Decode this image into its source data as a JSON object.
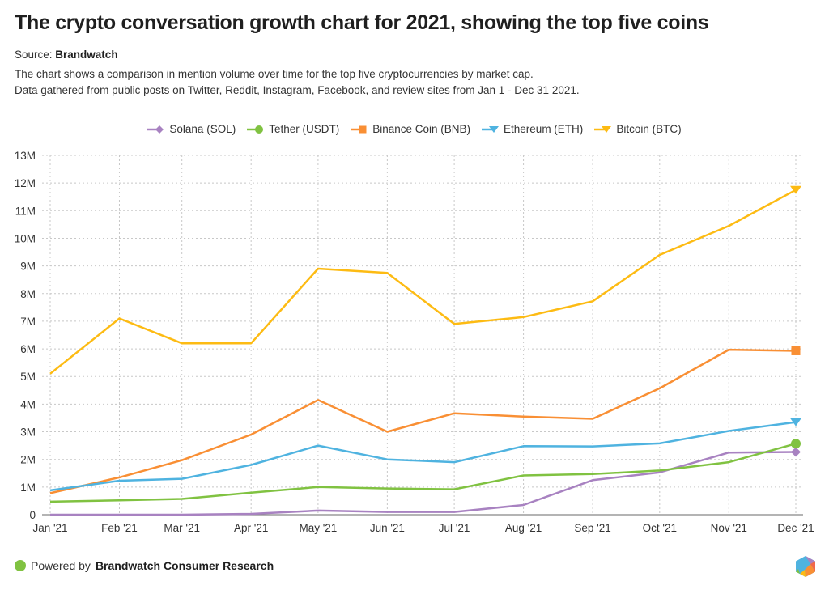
{
  "header": {
    "title": "The crypto conversation growth chart for 2021, showing the top five coins",
    "source_label": "Source:",
    "source_name": "Brandwatch",
    "description_line1": "The chart shows a comparison in mention volume over time for the top five cryptocurrencies by market cap.",
    "description_line2": "Data gathered from public posts on Twitter, Reddit, Instagram, Facebook, and review sites from Jan 1 - Dec 31 2021."
  },
  "footer": {
    "powered_by": "Powered by",
    "brand": "Brandwatch Consumer Research",
    "logo_icon": "brandwatch-hexagon-logo"
  },
  "chart_data": {
    "type": "line",
    "title": "The crypto conversation growth chart for 2021, showing the top five coins",
    "xlabel": "",
    "ylabel": "",
    "categories": [
      "Jan '21",
      "Feb '21",
      "Mar '21",
      "Apr '21",
      "May '21",
      "Jun '21",
      "Jul '21",
      "Aug '21",
      "Sep '21",
      "Oct '21",
      "Nov '21",
      "Dec '21"
    ],
    "x_day_of_year": [
      0,
      31,
      59,
      90,
      120,
      151,
      181,
      212,
      243,
      273,
      304,
      334
    ],
    "ylim": [
      0,
      13000000
    ],
    "yticks": [
      0,
      1000000,
      2000000,
      3000000,
      4000000,
      5000000,
      6000000,
      7000000,
      8000000,
      9000000,
      10000000,
      11000000,
      12000000,
      13000000
    ],
    "ytick_labels": [
      "0",
      "1M",
      "2M",
      "3M",
      "4M",
      "5M",
      "6M",
      "7M",
      "8M",
      "9M",
      "10M",
      "11M",
      "12M",
      "13M"
    ],
    "grid": true,
    "legend_position": "top-center",
    "series": [
      {
        "name": "Solana (SOL)",
        "color": "#a882c1",
        "marker": "diamond",
        "values": [
          0,
          0,
          0,
          30000,
          150000,
          100000,
          100000,
          350000,
          1250000,
          1530000,
          2250000,
          2270000
        ]
      },
      {
        "name": "Tether (USDT)",
        "color": "#80c241",
        "marker": "circle",
        "values": [
          470000,
          520000,
          570000,
          800000,
          1000000,
          950000,
          920000,
          1420000,
          1470000,
          1600000,
          1900000,
          2570000
        ]
      },
      {
        "name": "Binance Coin (BNB)",
        "color": "#f98f34",
        "marker": "square",
        "values": [
          780000,
          1350000,
          1970000,
          2900000,
          4150000,
          3000000,
          3670000,
          3550000,
          3470000,
          4570000,
          5970000,
          5930000
        ]
      },
      {
        "name": "Ethereum (ETH)",
        "color": "#4fb3e0",
        "marker": "triangle-down",
        "values": [
          880000,
          1230000,
          1300000,
          1800000,
          2500000,
          2000000,
          1900000,
          2480000,
          2470000,
          2580000,
          3030000,
          3350000
        ]
      },
      {
        "name": "Bitcoin (BTC)",
        "color": "#fdbb13",
        "marker": "triangle-down",
        "values": [
          5100000,
          7100000,
          6200000,
          6200000,
          8900000,
          8750000,
          6900000,
          7150000,
          7720000,
          9400000,
          10450000,
          11750000
        ]
      }
    ]
  }
}
